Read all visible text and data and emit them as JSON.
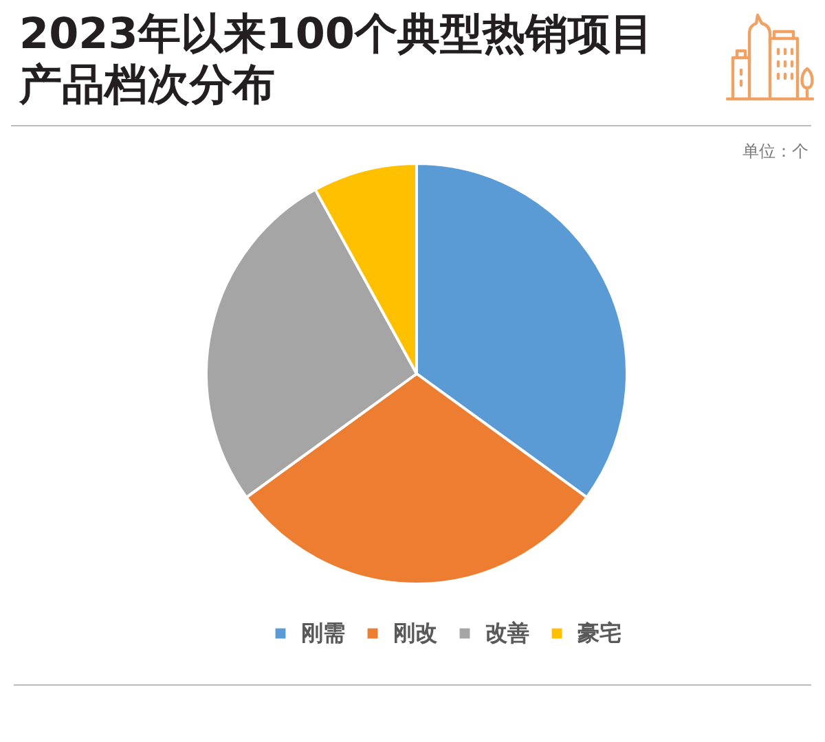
{
  "chart_data": {
    "type": "pie",
    "title": "2023年以来100个典型热销项目产品档次分布",
    "categories": [
      "刚需",
      "刚改",
      "改善",
      "豪宅"
    ],
    "values": [
      35,
      30,
      27,
      8
    ],
    "colors": [
      "#5b9bd5",
      "#ed7d31",
      "#a5a5a5",
      "#ffc000"
    ],
    "legend": "bottom",
    "annotations": [
      "单位：个"
    ]
  }
}
